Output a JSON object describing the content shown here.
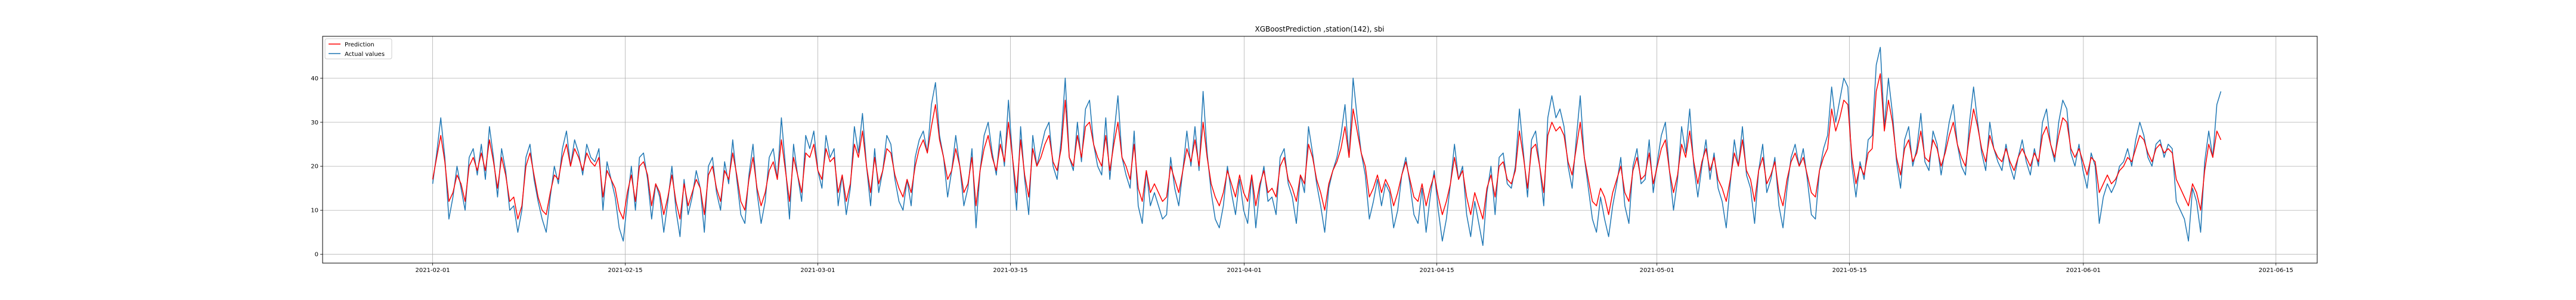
{
  "chart_data": {
    "type": "line",
    "title": "XGBoostPrediction ,station(142), sbi",
    "xlabel": "",
    "ylabel": "",
    "x_range": [
      "2021-01-24",
      "2021-06-18"
    ],
    "ylim": [
      -2,
      49.5
    ],
    "grid": true,
    "legend_position": "top-left",
    "x_ticks": [
      "2021-02-01",
      "2021-02-15",
      "2021-03-01",
      "2021-03-15",
      "2021-04-01",
      "2021-04-15",
      "2021-05-01",
      "2021-05-15",
      "2021-06-01",
      "2021-06-15"
    ],
    "y_ticks": [
      0,
      10,
      20,
      30,
      40
    ],
    "x_start": "2021-02-01",
    "x_end": "2021-06-11",
    "series": [
      {
        "name": "Prediction",
        "color": "#ff0000",
        "values": [
          17,
          22,
          27,
          21,
          12,
          14,
          18,
          16,
          12,
          20,
          22,
          19,
          23,
          19,
          26,
          21,
          15,
          22,
          18,
          12,
          13,
          8,
          11,
          20,
          23,
          18,
          13,
          10,
          9,
          14,
          18,
          17,
          22,
          25,
          20,
          24,
          22,
          19,
          23,
          21,
          20,
          22,
          13,
          19,
          17,
          15,
          10,
          8,
          14,
          18,
          12,
          20,
          21,
          18,
          11,
          16,
          14,
          9,
          13,
          18,
          12,
          8,
          16,
          11,
          14,
          17,
          15,
          9,
          18,
          20,
          15,
          12,
          19,
          17,
          23,
          18,
          12,
          10,
          17,
          22,
          15,
          11,
          14,
          19,
          21,
          17,
          26,
          19,
          12,
          22,
          18,
          14,
          23,
          22,
          25,
          19,
          17,
          24,
          21,
          22,
          14,
          18,
          12,
          16,
          25,
          22,
          28,
          20,
          14,
          22,
          16,
          19,
          24,
          23,
          18,
          15,
          13,
          17,
          14,
          20,
          24,
          26,
          23,
          29,
          34,
          26,
          22,
          17,
          19,
          24,
          20,
          14,
          16,
          22,
          11,
          19,
          24,
          27,
          22,
          19,
          25,
          21,
          30,
          22,
          14,
          26,
          18,
          13,
          24,
          20,
          22,
          25,
          27,
          21,
          19,
          24,
          35,
          22,
          20,
          27,
          22,
          29,
          30,
          25,
          22,
          20,
          27,
          19,
          25,
          30,
          22,
          20,
          17,
          25,
          15,
          12,
          19,
          14,
          16,
          14,
          12,
          13,
          20,
          17,
          14,
          19,
          24,
          21,
          26,
          20,
          30,
          22,
          16,
          13,
          11,
          14,
          19,
          16,
          13,
          18,
          14,
          12,
          18,
          11,
          16,
          19,
          14,
          15,
          13,
          20,
          22,
          17,
          15,
          12,
          18,
          16,
          25,
          22,
          17,
          14,
          10,
          16,
          19,
          21,
          24,
          29,
          22,
          33,
          28,
          23,
          20,
          13,
          15,
          18,
          14,
          17,
          15,
          11,
          14,
          18,
          21,
          17,
          13,
          12,
          16,
          11,
          15,
          18,
          13,
          9,
          12,
          16,
          22,
          17,
          19,
          13,
          9,
          14,
          11,
          8,
          15,
          18,
          13,
          20,
          21,
          17,
          16,
          19,
          28,
          22,
          15,
          24,
          25,
          20,
          14,
          27,
          30,
          28,
          29,
          27,
          21,
          18,
          24,
          30,
          22,
          17,
          12,
          11,
          15,
          13,
          9,
          14,
          17,
          20,
          14,
          12,
          19,
          22,
          17,
          18,
          23,
          16,
          20,
          24,
          26,
          19,
          14,
          18,
          25,
          22,
          28,
          21,
          16,
          21,
          24,
          19,
          22,
          17,
          15,
          12,
          17,
          23,
          20,
          26,
          19,
          17,
          12,
          19,
          22,
          16,
          18,
          21,
          14,
          11,
          17,
          21,
          23,
          20,
          22,
          18,
          14,
          13,
          19,
          22,
          24,
          33,
          28,
          31,
          35,
          34,
          22,
          16,
          20,
          18,
          23,
          24,
          37,
          41,
          28,
          35,
          30,
          22,
          18,
          24,
          26,
          21,
          23,
          28,
          22,
          21,
          26,
          24,
          20,
          23,
          27,
          30,
          25,
          22,
          20,
          27,
          33,
          29,
          24,
          21,
          27,
          24,
          22,
          21,
          24,
          21,
          19,
          22,
          24,
          22,
          20,
          23,
          21,
          27,
          29,
          25,
          22,
          27,
          31,
          30,
          24,
          22,
          24,
          21,
          18,
          22,
          21,
          14,
          16,
          18,
          16,
          17,
          19,
          20,
          22,
          21,
          24,
          27,
          26,
          23,
          21,
          24,
          25,
          23,
          24,
          23,
          17,
          15,
          13,
          11,
          16,
          14,
          10,
          19,
          25,
          22,
          28,
          26
        ]
      },
      {
        "name": "Actual values",
        "color": "#1f77b4",
        "values": [
          16,
          23,
          31,
          22,
          8,
          13,
          20,
          15,
          10,
          22,
          24,
          18,
          25,
          17,
          29,
          22,
          13,
          24,
          19,
          10,
          11,
          5,
          10,
          22,
          25,
          17,
          12,
          8,
          5,
          13,
          20,
          16,
          24,
          28,
          20,
          26,
          23,
          18,
          25,
          22,
          21,
          24,
          10,
          21,
          17,
          13,
          6,
          3,
          12,
          20,
          10,
          22,
          23,
          17,
          8,
          16,
          13,
          5,
          12,
          20,
          10,
          4,
          17,
          9,
          13,
          19,
          15,
          5,
          20,
          22,
          14,
          10,
          21,
          16,
          26,
          17,
          9,
          7,
          18,
          25,
          14,
          7,
          12,
          22,
          24,
          17,
          31,
          20,
          8,
          25,
          18,
          12,
          27,
          24,
          28,
          19,
          15,
          27,
          22,
          24,
          11,
          18,
          9,
          15,
          29,
          23,
          32,
          20,
          11,
          24,
          14,
          19,
          27,
          25,
          17,
          12,
          10,
          17,
          11,
          22,
          26,
          28,
          23,
          34,
          39,
          27,
          22,
          13,
          19,
          27,
          20,
          11,
          15,
          24,
          6,
          19,
          27,
          30,
          23,
          18,
          28,
          20,
          35,
          22,
          10,
          29,
          17,
          9,
          27,
          20,
          24,
          28,
          30,
          20,
          17,
          26,
          40,
          22,
          19,
          30,
          21,
          33,
          35,
          25,
          20,
          18,
          31,
          17,
          27,
          36,
          22,
          18,
          15,
          28,
          11,
          7,
          19,
          11,
          14,
          11,
          8,
          9,
          22,
          15,
          11,
          19,
          28,
          20,
          29,
          19,
          37,
          23,
          14,
          8,
          6,
          11,
          20,
          14,
          9,
          17,
          10,
          7,
          18,
          6,
          15,
          20,
          12,
          13,
          9,
          22,
          24,
          16,
          13,
          7,
          18,
          14,
          29,
          23,
          16,
          11,
          5,
          15,
          19,
          22,
          27,
          34,
          22,
          40,
          31,
          23,
          18,
          8,
          12,
          17,
          11,
          16,
          14,
          6,
          10,
          18,
          22,
          16,
          9,
          7,
          15,
          5,
          13,
          19,
          10,
          3,
          8,
          16,
          25,
          17,
          20,
          9,
          4,
          12,
          7,
          2,
          14,
          20,
          9,
          22,
          23,
          16,
          15,
          20,
          33,
          23,
          13,
          26,
          28,
          20,
          11,
          31,
          36,
          31,
          33,
          29,
          20,
          15,
          26,
          36,
          22,
          15,
          8,
          5,
          13,
          8,
          4,
          11,
          16,
          22,
          11,
          7,
          20,
          24,
          16,
          17,
          26,
          14,
          21,
          27,
          30,
          19,
          10,
          17,
          29,
          23,
          33,
          20,
          13,
          20,
          26,
          17,
          23,
          15,
          12,
          6,
          16,
          26,
          20,
          29,
          18,
          15,
          7,
          19,
          25,
          14,
          17,
          22,
          11,
          6,
          15,
          22,
          25,
          20,
          24,
          17,
          9,
          8,
          19,
          24,
          27,
          38,
          30,
          35,
          40,
          38,
          20,
          13,
          21,
          17,
          26,
          27,
          43,
          47,
          29,
          40,
          32,
          21,
          15,
          26,
          29,
          20,
          24,
          32,
          21,
          19,
          28,
          25,
          18,
          24,
          30,
          34,
          25,
          20,
          18,
          30,
          38,
          30,
          23,
          19,
          30,
          24,
          21,
          19,
          25,
          20,
          17,
          22,
          26,
          21,
          18,
          24,
          20,
          30,
          33,
          25,
          21,
          30,
          35,
          33,
          23,
          20,
          25,
          19,
          15,
          23,
          20,
          7,
          13,
          16,
          14,
          16,
          20,
          21,
          24,
          20,
          26,
          30,
          27,
          22,
          20,
          25,
          26,
          22,
          25,
          24,
          12,
          10,
          8,
          3,
          15,
          12,
          5,
          21,
          28,
          22,
          34,
          37
        ]
      }
    ]
  }
}
